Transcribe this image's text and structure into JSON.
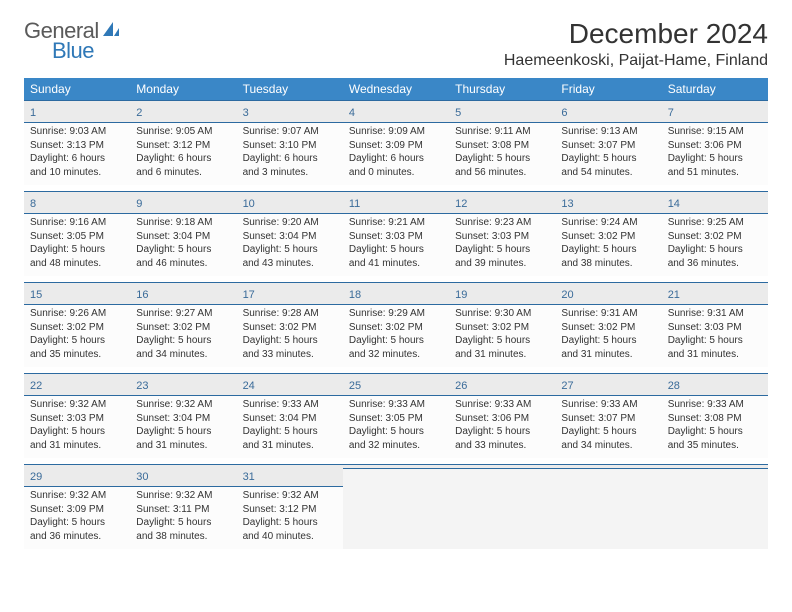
{
  "brand": {
    "word1": "General",
    "word2": "Blue",
    "sail_color": "#2f78b7"
  },
  "title": "December 2024",
  "location": "Haemeenkoski, Paijat-Hame, Finland",
  "colors": {
    "header_bg": "#3a87c7",
    "header_text": "#ffffff",
    "daynum_color": "#3a6b99",
    "rule_color": "#2c6aa0",
    "cell_bg": "#fcfcfc",
    "daybar_bg": "#ebebeb"
  },
  "day_names": [
    "Sunday",
    "Monday",
    "Tuesday",
    "Wednesday",
    "Thursday",
    "Friday",
    "Saturday"
  ],
  "weeks": [
    [
      {
        "n": "1",
        "sr": "Sunrise: 9:03 AM",
        "ss": "Sunset: 3:13 PM",
        "d1": "Daylight: 6 hours",
        "d2": "and 10 minutes."
      },
      {
        "n": "2",
        "sr": "Sunrise: 9:05 AM",
        "ss": "Sunset: 3:12 PM",
        "d1": "Daylight: 6 hours",
        "d2": "and 6 minutes."
      },
      {
        "n": "3",
        "sr": "Sunrise: 9:07 AM",
        "ss": "Sunset: 3:10 PM",
        "d1": "Daylight: 6 hours",
        "d2": "and 3 minutes."
      },
      {
        "n": "4",
        "sr": "Sunrise: 9:09 AM",
        "ss": "Sunset: 3:09 PM",
        "d1": "Daylight: 6 hours",
        "d2": "and 0 minutes."
      },
      {
        "n": "5",
        "sr": "Sunrise: 9:11 AM",
        "ss": "Sunset: 3:08 PM",
        "d1": "Daylight: 5 hours",
        "d2": "and 56 minutes."
      },
      {
        "n": "6",
        "sr": "Sunrise: 9:13 AM",
        "ss": "Sunset: 3:07 PM",
        "d1": "Daylight: 5 hours",
        "d2": "and 54 minutes."
      },
      {
        "n": "7",
        "sr": "Sunrise: 9:15 AM",
        "ss": "Sunset: 3:06 PM",
        "d1": "Daylight: 5 hours",
        "d2": "and 51 minutes."
      }
    ],
    [
      {
        "n": "8",
        "sr": "Sunrise: 9:16 AM",
        "ss": "Sunset: 3:05 PM",
        "d1": "Daylight: 5 hours",
        "d2": "and 48 minutes."
      },
      {
        "n": "9",
        "sr": "Sunrise: 9:18 AM",
        "ss": "Sunset: 3:04 PM",
        "d1": "Daylight: 5 hours",
        "d2": "and 46 minutes."
      },
      {
        "n": "10",
        "sr": "Sunrise: 9:20 AM",
        "ss": "Sunset: 3:04 PM",
        "d1": "Daylight: 5 hours",
        "d2": "and 43 minutes."
      },
      {
        "n": "11",
        "sr": "Sunrise: 9:21 AM",
        "ss": "Sunset: 3:03 PM",
        "d1": "Daylight: 5 hours",
        "d2": "and 41 minutes."
      },
      {
        "n": "12",
        "sr": "Sunrise: 9:23 AM",
        "ss": "Sunset: 3:03 PM",
        "d1": "Daylight: 5 hours",
        "d2": "and 39 minutes."
      },
      {
        "n": "13",
        "sr": "Sunrise: 9:24 AM",
        "ss": "Sunset: 3:02 PM",
        "d1": "Daylight: 5 hours",
        "d2": "and 38 minutes."
      },
      {
        "n": "14",
        "sr": "Sunrise: 9:25 AM",
        "ss": "Sunset: 3:02 PM",
        "d1": "Daylight: 5 hours",
        "d2": "and 36 minutes."
      }
    ],
    [
      {
        "n": "15",
        "sr": "Sunrise: 9:26 AM",
        "ss": "Sunset: 3:02 PM",
        "d1": "Daylight: 5 hours",
        "d2": "and 35 minutes."
      },
      {
        "n": "16",
        "sr": "Sunrise: 9:27 AM",
        "ss": "Sunset: 3:02 PM",
        "d1": "Daylight: 5 hours",
        "d2": "and 34 minutes."
      },
      {
        "n": "17",
        "sr": "Sunrise: 9:28 AM",
        "ss": "Sunset: 3:02 PM",
        "d1": "Daylight: 5 hours",
        "d2": "and 33 minutes."
      },
      {
        "n": "18",
        "sr": "Sunrise: 9:29 AM",
        "ss": "Sunset: 3:02 PM",
        "d1": "Daylight: 5 hours",
        "d2": "and 32 minutes."
      },
      {
        "n": "19",
        "sr": "Sunrise: 9:30 AM",
        "ss": "Sunset: 3:02 PM",
        "d1": "Daylight: 5 hours",
        "d2": "and 31 minutes."
      },
      {
        "n": "20",
        "sr": "Sunrise: 9:31 AM",
        "ss": "Sunset: 3:02 PM",
        "d1": "Daylight: 5 hours",
        "d2": "and 31 minutes."
      },
      {
        "n": "21",
        "sr": "Sunrise: 9:31 AM",
        "ss": "Sunset: 3:03 PM",
        "d1": "Daylight: 5 hours",
        "d2": "and 31 minutes."
      }
    ],
    [
      {
        "n": "22",
        "sr": "Sunrise: 9:32 AM",
        "ss": "Sunset: 3:03 PM",
        "d1": "Daylight: 5 hours",
        "d2": "and 31 minutes."
      },
      {
        "n": "23",
        "sr": "Sunrise: 9:32 AM",
        "ss": "Sunset: 3:04 PM",
        "d1": "Daylight: 5 hours",
        "d2": "and 31 minutes."
      },
      {
        "n": "24",
        "sr": "Sunrise: 9:33 AM",
        "ss": "Sunset: 3:04 PM",
        "d1": "Daylight: 5 hours",
        "d2": "and 31 minutes."
      },
      {
        "n": "25",
        "sr": "Sunrise: 9:33 AM",
        "ss": "Sunset: 3:05 PM",
        "d1": "Daylight: 5 hours",
        "d2": "and 32 minutes."
      },
      {
        "n": "26",
        "sr": "Sunrise: 9:33 AM",
        "ss": "Sunset: 3:06 PM",
        "d1": "Daylight: 5 hours",
        "d2": "and 33 minutes."
      },
      {
        "n": "27",
        "sr": "Sunrise: 9:33 AM",
        "ss": "Sunset: 3:07 PM",
        "d1": "Daylight: 5 hours",
        "d2": "and 34 minutes."
      },
      {
        "n": "28",
        "sr": "Sunrise: 9:33 AM",
        "ss": "Sunset: 3:08 PM",
        "d1": "Daylight: 5 hours",
        "d2": "and 35 minutes."
      }
    ],
    [
      {
        "n": "29",
        "sr": "Sunrise: 9:32 AM",
        "ss": "Sunset: 3:09 PM",
        "d1": "Daylight: 5 hours",
        "d2": "and 36 minutes."
      },
      {
        "n": "30",
        "sr": "Sunrise: 9:32 AM",
        "ss": "Sunset: 3:11 PM",
        "d1": "Daylight: 5 hours",
        "d2": "and 38 minutes."
      },
      {
        "n": "31",
        "sr": "Sunrise: 9:32 AM",
        "ss": "Sunset: 3:12 PM",
        "d1": "Daylight: 5 hours",
        "d2": "and 40 minutes."
      },
      {
        "empty": true
      },
      {
        "empty": true
      },
      {
        "empty": true
      },
      {
        "empty": true
      }
    ]
  ]
}
